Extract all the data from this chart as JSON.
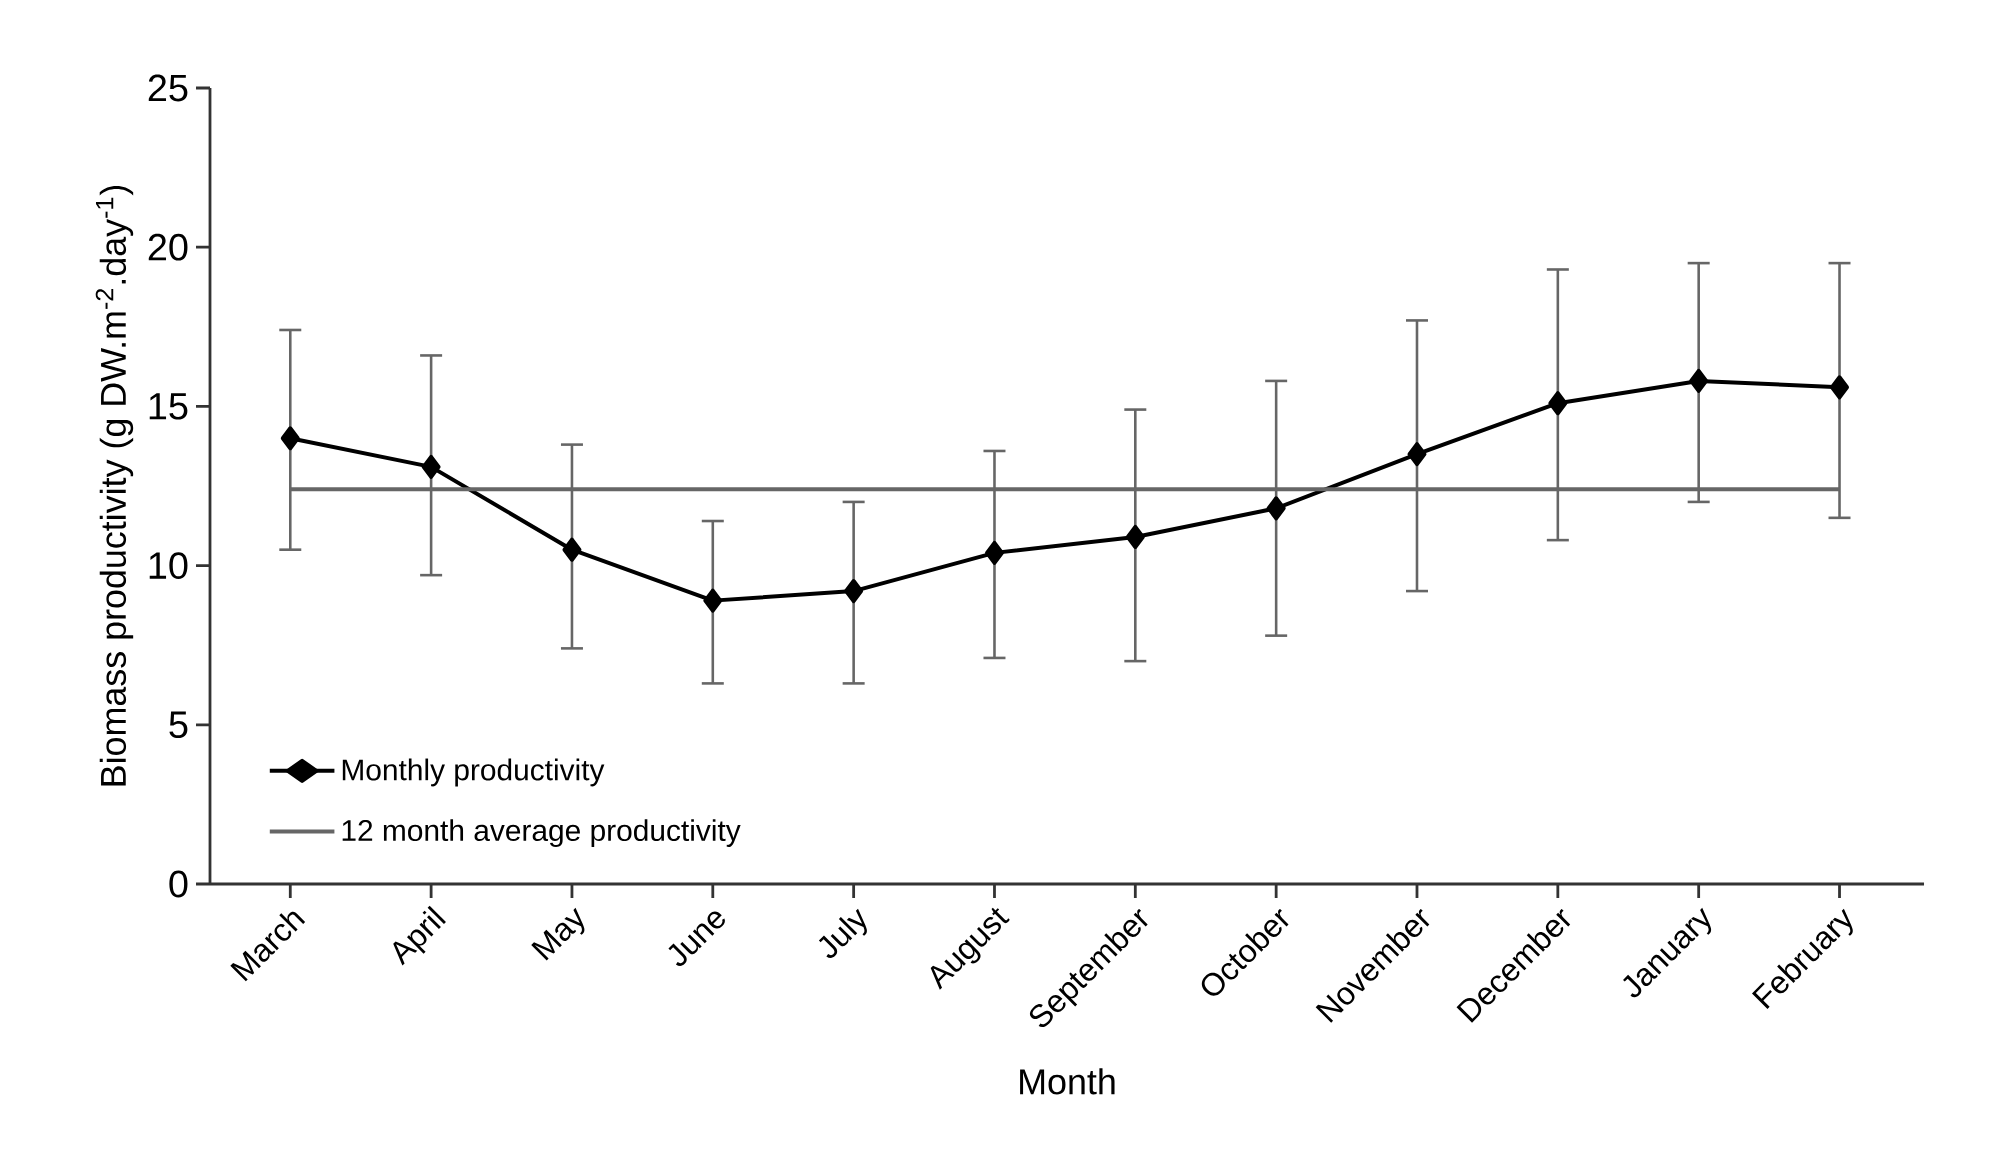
{
  "chart_data": {
    "type": "line",
    "xlabel": "Month",
    "ylabel": "Biomass productivity (g DW.m$^{-2}$.day$^{-1}$)",
    "categories": [
      "March",
      "April",
      "May",
      "June",
      "July",
      "August",
      "September",
      "October",
      "November",
      "December",
      "January",
      "February"
    ],
    "ylim": [
      0,
      25
    ],
    "yticks": [
      0,
      5,
      10,
      15,
      20,
      25
    ],
    "legend": "bottom left",
    "series": [
      {
        "name": "Monthly productivity",
        "color": "#000000",
        "marker": "diamond",
        "values": [
          14.0,
          13.1,
          10.5,
          8.9,
          9.2,
          10.4,
          10.9,
          11.8,
          13.5,
          15.1,
          15.8,
          15.6
        ],
        "errors": [
          [
            10.5,
            17.4
          ],
          [
            9.7,
            16.6
          ],
          [
            7.4,
            13.8
          ],
          [
            6.3,
            11.4
          ],
          [
            6.3,
            12.0
          ],
          [
            7.1,
            13.6
          ],
          [
            7.0,
            14.9
          ],
          [
            7.8,
            15.8
          ],
          [
            9.2,
            17.7
          ],
          [
            10.8,
            19.3
          ],
          [
            12.0,
            19.5
          ],
          [
            11.5,
            19.5
          ]
        ]
      },
      {
        "name": "12 month average productivity",
        "color": "#666666",
        "marker": "none",
        "values": [
          12.4,
          12.4,
          12.4,
          12.4,
          12.4,
          12.4,
          12.4,
          12.4,
          12.4,
          12.4,
          12.4,
          12.4
        ]
      }
    ]
  }
}
